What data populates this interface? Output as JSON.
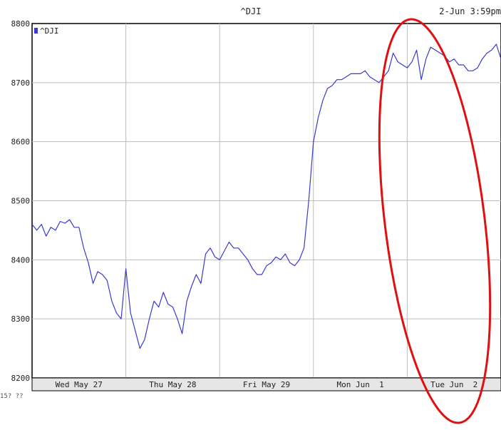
{
  "chart_data": {
    "type": "line",
    "title": "^DJI",
    "timestamp": "2-Jun 3:59pm",
    "legend": {
      "label": "^DJI",
      "placement": "top-left"
    },
    "xlabel": "",
    "ylabel": "",
    "ylim": [
      8200,
      8800
    ],
    "y_ticks": [
      "8800",
      "8700",
      "8600",
      "8500",
      "8400",
      "8300",
      "8200"
    ],
    "y_tick_values": [
      8800,
      8700,
      8600,
      8500,
      8400,
      8300,
      8200
    ],
    "x_categories": [
      "Wed May 27",
      "Thu May 28",
      "Fri May 29",
      "Mon Jun  1",
      "Tue Jun  2"
    ],
    "grid": true,
    "cutoff_label": "15? ??",
    "series": [
      {
        "name": "^DJI",
        "color": "#3a3acc",
        "x": [
          0.0,
          0.05,
          0.1,
          0.15,
          0.2,
          0.25,
          0.3,
          0.35,
          0.4,
          0.45,
          0.5,
          0.55,
          0.6,
          0.65,
          0.7,
          0.75,
          0.8,
          0.85,
          0.9,
          0.95,
          1.0,
          1.05,
          1.1,
          1.15,
          1.2,
          1.25,
          1.3,
          1.35,
          1.4,
          1.45,
          1.5,
          1.55,
          1.6,
          1.65,
          1.7,
          1.75,
          1.8,
          1.85,
          1.9,
          1.95,
          2.0,
          2.05,
          2.1,
          2.15,
          2.2,
          2.25,
          2.3,
          2.35,
          2.4,
          2.45,
          2.5,
          2.55,
          2.6,
          2.65,
          2.7,
          2.75,
          2.8,
          2.85,
          2.9,
          2.95,
          3.0,
          3.05,
          3.1,
          3.15,
          3.2,
          3.25,
          3.3,
          3.35,
          3.4,
          3.45,
          3.5,
          3.55,
          3.6,
          3.65,
          3.7,
          3.75,
          3.8,
          3.85,
          3.9,
          3.95,
          4.0,
          4.05,
          4.1,
          4.15,
          4.2,
          4.25,
          4.3,
          4.35,
          4.4,
          4.45,
          4.5,
          4.55,
          4.6,
          4.65,
          4.7,
          4.75,
          4.8,
          4.85,
          4.9,
          4.95,
          5.0
        ],
        "values": [
          8460,
          8450,
          8460,
          8440,
          8455,
          8450,
          8465,
          8462,
          8468,
          8455,
          8455,
          8420,
          8395,
          8360,
          8380,
          8375,
          8365,
          8330,
          8310,
          8300,
          8385,
          8310,
          8280,
          8250,
          8265,
          8300,
          8330,
          8320,
          8345,
          8325,
          8320,
          8300,
          8275,
          8330,
          8355,
          8375,
          8360,
          8410,
          8420,
          8405,
          8400,
          8415,
          8430,
          8420,
          8420,
          8410,
          8400,
          8385,
          8375,
          8375,
          8390,
          8395,
          8405,
          8400,
          8410,
          8395,
          8390,
          8400,
          8420,
          8500,
          8600,
          8640,
          8670,
          8690,
          8695,
          8705,
          8705,
          8710,
          8715,
          8715,
          8715,
          8720,
          8710,
          8705,
          8700,
          8710,
          8720,
          8750,
          8735,
          8730,
          8725,
          8735,
          8755,
          8705,
          8740,
          8760,
          8755,
          8750,
          8745,
          8735,
          8740,
          8730,
          8730,
          8720,
          8720,
          8725,
          8740,
          8750,
          8755,
          8765,
          8740
        ]
      }
    ],
    "annotation": {
      "shape": "ellipse",
      "color": "#e01010",
      "description": ""
    }
  }
}
